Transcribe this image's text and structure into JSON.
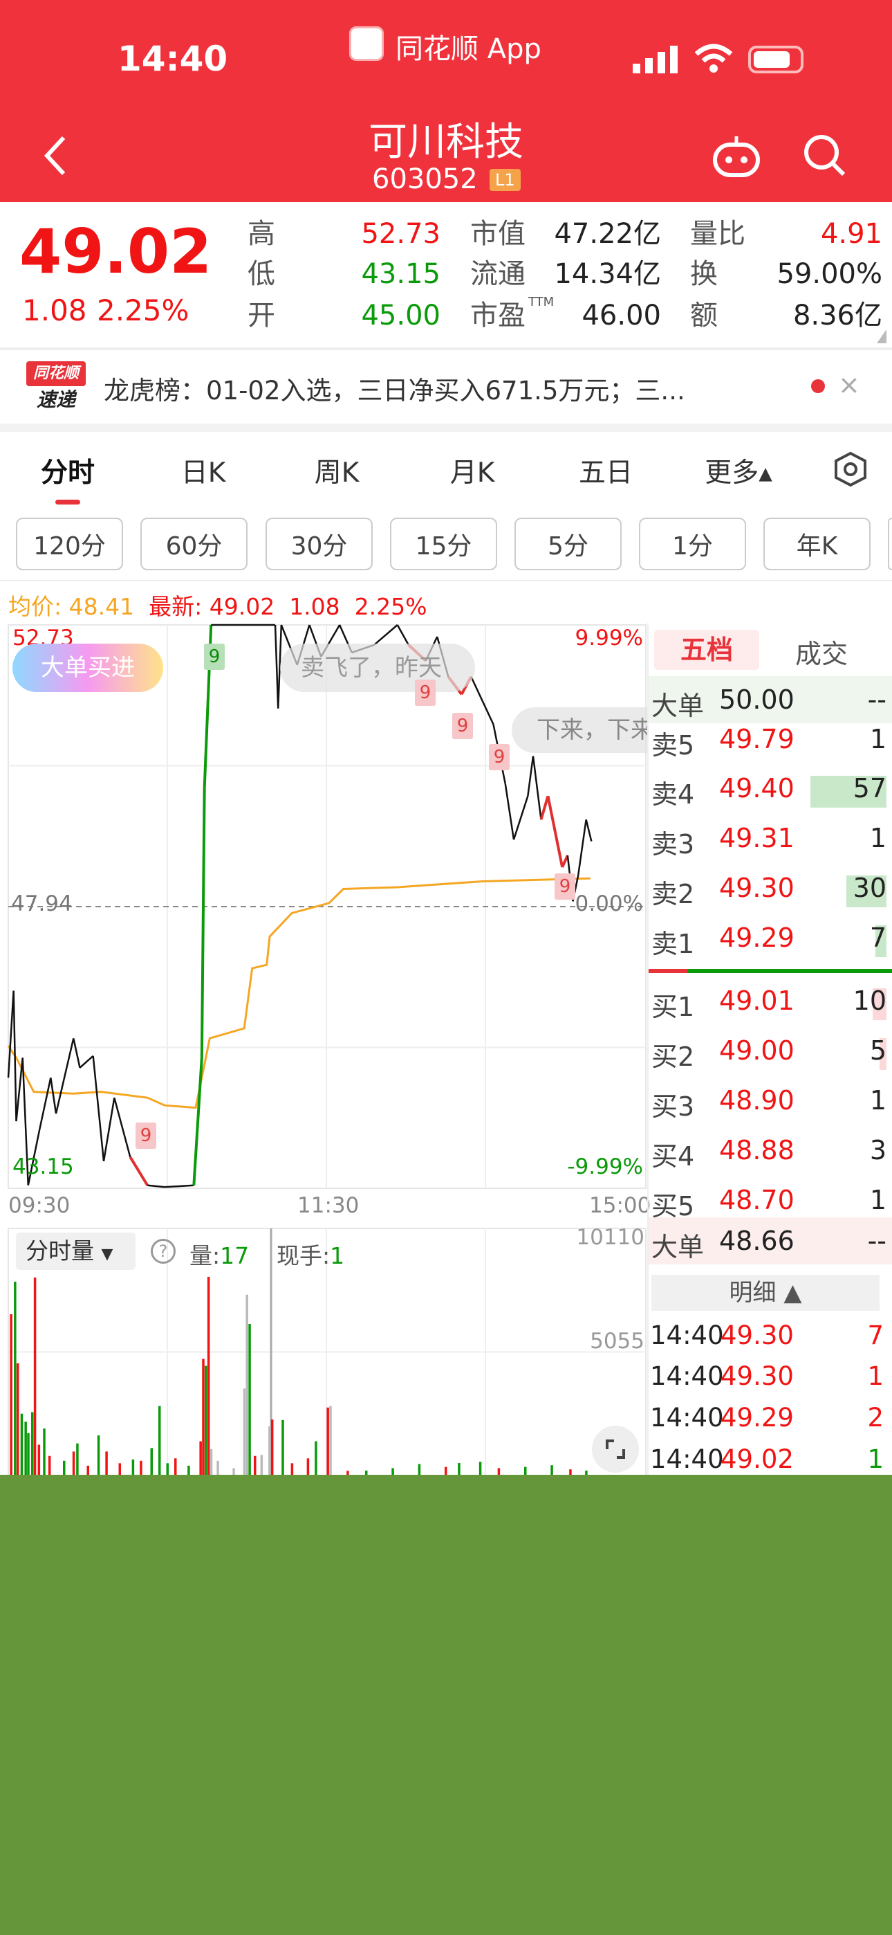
{
  "status_bar": {
    "time": "14:40",
    "app": "同花顺 App"
  },
  "header": {
    "title": "可川科技",
    "code": "603052",
    "badge": "L1",
    "back_icon": "chevron-left-icon",
    "robot_icon": "robot-icon",
    "search_icon": "search-icon"
  },
  "quote": {
    "price": "49.02",
    "change": "1.08",
    "change_pct": "2.25%",
    "stats": [
      {
        "label": "高",
        "value": "52.73",
        "color": "red"
      },
      {
        "label": "低",
        "value": "43.15",
        "color": "green"
      },
      {
        "label": "开",
        "value": "45.00",
        "color": "green"
      },
      {
        "label": "市值",
        "value": "47.22亿"
      },
      {
        "label": "流通",
        "value": "14.34亿"
      },
      {
        "label": "市盈",
        "sup": "TTM",
        "value": "46.00"
      },
      {
        "label": "量比",
        "value": "4.91",
        "color": "red"
      },
      {
        "label": "换",
        "value": "59.00%"
      },
      {
        "label": "额",
        "value": "8.36亿"
      }
    ]
  },
  "news": {
    "logo_top": "同花顺",
    "logo_bottom": "速递",
    "text": "龙虎榜：01-02入选，三日净买入671.5万元；三..."
  },
  "tabs": [
    {
      "label": "分时",
      "active": true
    },
    {
      "label": "日K"
    },
    {
      "label": "周K"
    },
    {
      "label": "月K"
    },
    {
      "label": "五日"
    },
    {
      "label": "更多▴"
    }
  ],
  "periods": [
    "120分",
    "60分",
    "30分",
    "15分",
    "5分",
    "1分",
    "年K"
  ],
  "info": {
    "avg_label": "均价:",
    "avg": "48.41",
    "last_label": "最新:",
    "last": "49.02",
    "chg": "1.08",
    "pct": "2.25%"
  },
  "chart_labels": {
    "high": "52.73",
    "low": "43.15",
    "prev": "47.94",
    "pct_high": "9.99%",
    "pct_zero": "0.00%",
    "pct_low": "-9.99%",
    "times": [
      "09:30",
      "11:30",
      "15:00"
    ],
    "marker": "9"
  },
  "bubbles": {
    "bigbuy": "大单买进",
    "comment1": "卖飞了，昨天",
    "comment2": "下来，下来"
  },
  "volume_panel": {
    "selector": "分时量",
    "vol_label": "量:",
    "vol": "17",
    "hand_label": "现手:",
    "hand": "1",
    "max": "10110",
    "mid": "5055"
  },
  "orderbook": {
    "tabs": [
      "五档",
      "成交"
    ],
    "big_sell": {
      "label": "大单",
      "price": "50.00",
      "vol": "--"
    },
    "asks": [
      {
        "label": "卖5",
        "price": "49.79",
        "vol": "1"
      },
      {
        "label": "卖4",
        "price": "49.40",
        "vol": "57"
      },
      {
        "label": "卖3",
        "price": "49.31",
        "vol": "1"
      },
      {
        "label": "卖2",
        "price": "49.30",
        "vol": "30"
      },
      {
        "label": "卖1",
        "price": "49.29",
        "vol": "7"
      }
    ],
    "bids": [
      {
        "label": "买1",
        "price": "49.01",
        "vol": "10"
      },
      {
        "label": "买2",
        "price": "49.00",
        "vol": "5"
      },
      {
        "label": "买3",
        "price": "48.90",
        "vol": "1"
      },
      {
        "label": "买4",
        "price": "48.88",
        "vol": "3"
      },
      {
        "label": "买5",
        "price": "48.70",
        "vol": "1"
      }
    ],
    "big_buy": {
      "label": "大单",
      "price": "48.66",
      "vol": "--"
    },
    "detail_label": "明细 ▲",
    "ticks": [
      {
        "time": "14:40",
        "price": "49.30",
        "vol": "7",
        "color": "#f01414"
      },
      {
        "time": "14:40",
        "price": "49.30",
        "vol": "1",
        "color": "#f01414"
      },
      {
        "time": "14:40",
        "price": "49.29",
        "vol": "2",
        "color": "#f01414"
      },
      {
        "time": "14:40",
        "price": "49.02",
        "vol": "1",
        "color": "#0a9a0a"
      }
    ]
  },
  "colors": {
    "brand": "#f0323c",
    "up": "#f01414",
    "down": "#0a9a0a",
    "avg": "#f5a623",
    "bottom_fill": "#65963a"
  },
  "chart_data": {
    "type": "line",
    "ylim": [
      43.15,
      52.73
    ],
    "prev_close": 47.94,
    "x_range_minutes": [
      0,
      240
    ],
    "price": [
      [
        0,
        45.03
      ],
      [
        2,
        46.51
      ],
      [
        3,
        44.29
      ],
      [
        5.4,
        45.37
      ],
      [
        7.5,
        43.2
      ],
      [
        11.8,
        44.15
      ],
      [
        16,
        45.03
      ],
      [
        18,
        44.42
      ],
      [
        24.6,
        45.7
      ],
      [
        27,
        45.2
      ],
      [
        32,
        45.4
      ],
      [
        36,
        43.61
      ],
      [
        40,
        44.69
      ],
      [
        46,
        43.68
      ],
      [
        52.5,
        43.2
      ],
      [
        59,
        43.17
      ],
      [
        70,
        43.2
      ],
      [
        73,
        45.37
      ],
      [
        74,
        49.96
      ],
      [
        76.5,
        52.73
      ],
      [
        100.7,
        52.73
      ],
      [
        101.8,
        51.31
      ],
      [
        103,
        52.73
      ],
      [
        109,
        52.05
      ],
      [
        113.6,
        52.73
      ],
      [
        118,
        52.19
      ],
      [
        125,
        52.73
      ],
      [
        129.6,
        52.26
      ],
      [
        138,
        52.39
      ],
      [
        146.8,
        52.73
      ],
      [
        151,
        52.39
      ],
      [
        157.5,
        52.12
      ],
      [
        161.8,
        52.53
      ],
      [
        166,
        51.85
      ],
      [
        171,
        51.55
      ],
      [
        174.6,
        51.85
      ],
      [
        183,
        51.04
      ],
      [
        187.5,
        50.03
      ],
      [
        190.7,
        49.08
      ],
      [
        196,
        49.82
      ],
      [
        198,
        50.5
      ],
      [
        201,
        49.42
      ],
      [
        203.6,
        49.82
      ],
      [
        209,
        48.61
      ],
      [
        211,
        48.81
      ],
      [
        213,
        48.03
      ],
      [
        215,
        48.47
      ],
      [
        218,
        49.42
      ],
      [
        220,
        49.05
      ]
    ],
    "price_color_ranges": [
      {
        "from": 70,
        "to": 76.5,
        "color": "#0a9a0a"
      },
      {
        "from": 46,
        "to": 52.5,
        "color": "#e03030"
      },
      {
        "from": 149,
        "to": 158,
        "color": "#e03030"
      },
      {
        "from": 164,
        "to": 175,
        "color": "#e03030"
      },
      {
        "from": 177,
        "to": 185,
        "color": "#e03030"
      },
      {
        "from": 201,
        "to": 211,
        "color": "#e03030"
      }
    ],
    "avg_price": [
      [
        0,
        45.57
      ],
      [
        3,
        45.37
      ],
      [
        9.6,
        44.79
      ],
      [
        24.6,
        44.76
      ],
      [
        35,
        44.79
      ],
      [
        52.5,
        44.69
      ],
      [
        59,
        44.56
      ],
      [
        70.7,
        44.52
      ],
      [
        76,
        45.7
      ],
      [
        89,
        45.87
      ],
      [
        92,
        46.89
      ],
      [
        97.5,
        46.95
      ],
      [
        98.6,
        47.43
      ],
      [
        107,
        47.83
      ],
      [
        121,
        48.0
      ],
      [
        126.4,
        48.24
      ],
      [
        146.8,
        48.27
      ],
      [
        179,
        48.37
      ],
      [
        219.6,
        48.42
      ]
    ],
    "volume_max": 10110,
    "volume": [
      [
        1,
        6600,
        "r"
      ],
      [
        2.5,
        7930,
        "g"
      ],
      [
        3.5,
        4590,
        "r"
      ],
      [
        5,
        2530,
        "g"
      ],
      [
        6.5,
        2200,
        "g"
      ],
      [
        7.5,
        1730,
        "g"
      ],
      [
        9,
        2590,
        "g"
      ],
      [
        10,
        8100,
        "r"
      ],
      [
        11.5,
        1260,
        "r"
      ],
      [
        13.5,
        1920,
        "g"
      ],
      [
        15.5,
        800,
        "r"
      ],
      [
        21,
        600,
        "g"
      ],
      [
        24.6,
        980,
        "r"
      ],
      [
        26,
        1310,
        "g"
      ],
      [
        30,
        400,
        "r"
      ],
      [
        34,
        1640,
        "g"
      ],
      [
        37,
        980,
        "r"
      ],
      [
        42,
        500,
        "r"
      ],
      [
        47,
        655,
        "g"
      ],
      [
        50,
        600,
        "r"
      ],
      [
        54,
        1120,
        "g"
      ],
      [
        57,
        2840,
        "g"
      ],
      [
        60,
        500,
        "g"
      ],
      [
        63,
        700,
        "r"
      ],
      [
        68,
        400,
        "g"
      ],
      [
        72.5,
        1400,
        "r"
      ],
      [
        73.5,
        4770,
        "r"
      ],
      [
        74.5,
        4490,
        "g"
      ],
      [
        75.5,
        8130,
        "r"
      ],
      [
        76.5,
        1080,
        "x"
      ],
      [
        79,
        600,
        "x"
      ],
      [
        85,
        300,
        "x"
      ],
      [
        89,
        3560,
        "x"
      ],
      [
        90,
        7400,
        "x"
      ],
      [
        91,
        6200,
        "g"
      ],
      [
        93,
        800,
        "r"
      ],
      [
        95.5,
        840,
        "x"
      ],
      [
        98.5,
        2010,
        "x"
      ],
      [
        99.5,
        2290,
        "r"
      ],
      [
        103.5,
        2270,
        "g"
      ],
      [
        107,
        500,
        "r"
      ],
      [
        113,
        700,
        "r"
      ],
      [
        116,
        1400,
        "g"
      ],
      [
        120.5,
        2780,
        "r"
      ],
      [
        121.5,
        2840,
        "x"
      ],
      [
        128,
        190,
        "r"
      ],
      [
        135,
        200,
        "g"
      ],
      [
        145,
        300,
        "g"
      ],
      [
        155,
        470,
        "g"
      ],
      [
        165,
        350,
        "r"
      ],
      [
        170,
        510,
        "g"
      ],
      [
        178,
        560,
        "g"
      ],
      [
        185,
        300,
        "r"
      ],
      [
        195,
        350,
        "g"
      ],
      [
        205,
        420,
        "g"
      ],
      [
        212,
        250,
        "r"
      ],
      [
        218,
        200,
        "g"
      ]
    ]
  }
}
